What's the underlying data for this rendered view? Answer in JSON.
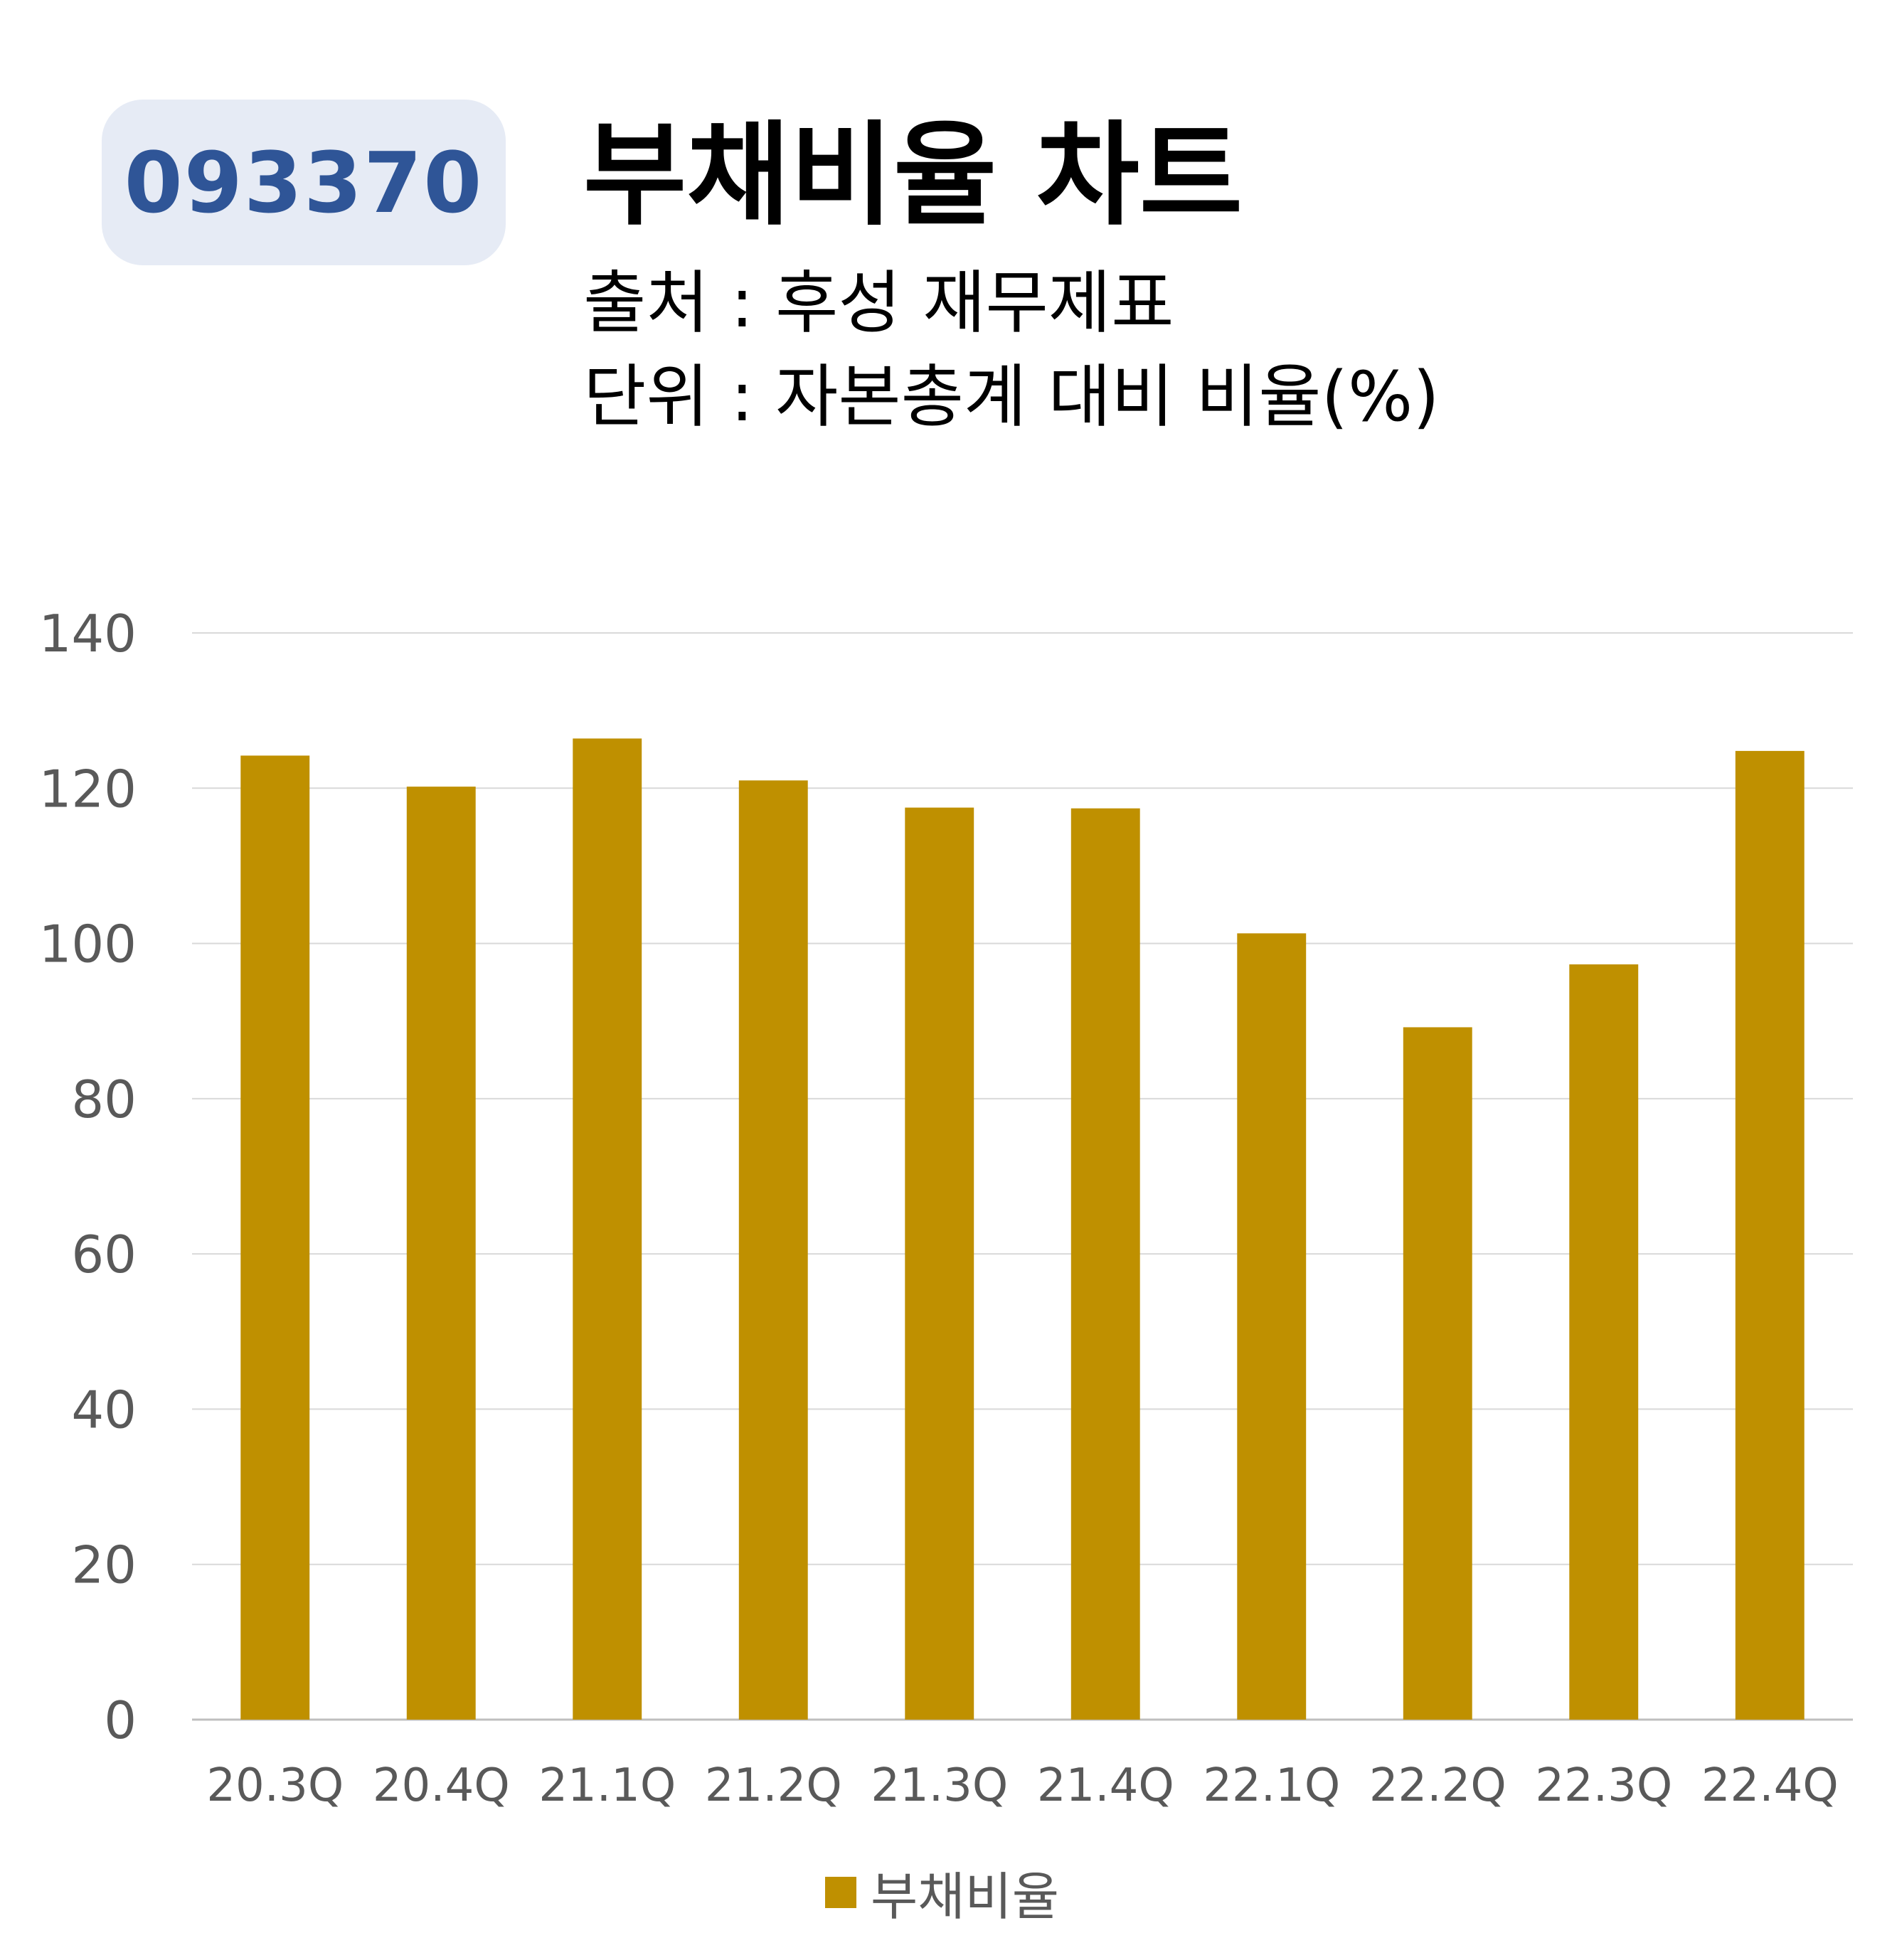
{
  "header": {
    "ticker": "093370",
    "title": "부채비율 차트",
    "source": "출처 : 후성 재무제표",
    "unit": "단위 : 자본총계 대비 비율(%)"
  },
  "chart_data": {
    "type": "bar",
    "categories": [
      "20.3Q",
      "20.4Q",
      "21.1Q",
      "21.2Q",
      "21.3Q",
      "21.4Q",
      "22.1Q",
      "22.2Q",
      "22.3Q",
      "22.4Q"
    ],
    "series": [
      {
        "name": "부채비율",
        "values": [
          124.2,
          120.2,
          126.4,
          121.0,
          117.5,
          117.4,
          101.3,
          89.2,
          97.3,
          124.8
        ],
        "color": "#bf9000"
      }
    ],
    "ylim": [
      0,
      140
    ],
    "yticks": [
      0,
      20,
      40,
      60,
      80,
      100,
      120,
      140
    ],
    "grid": true,
    "legend_position": "bottom"
  }
}
